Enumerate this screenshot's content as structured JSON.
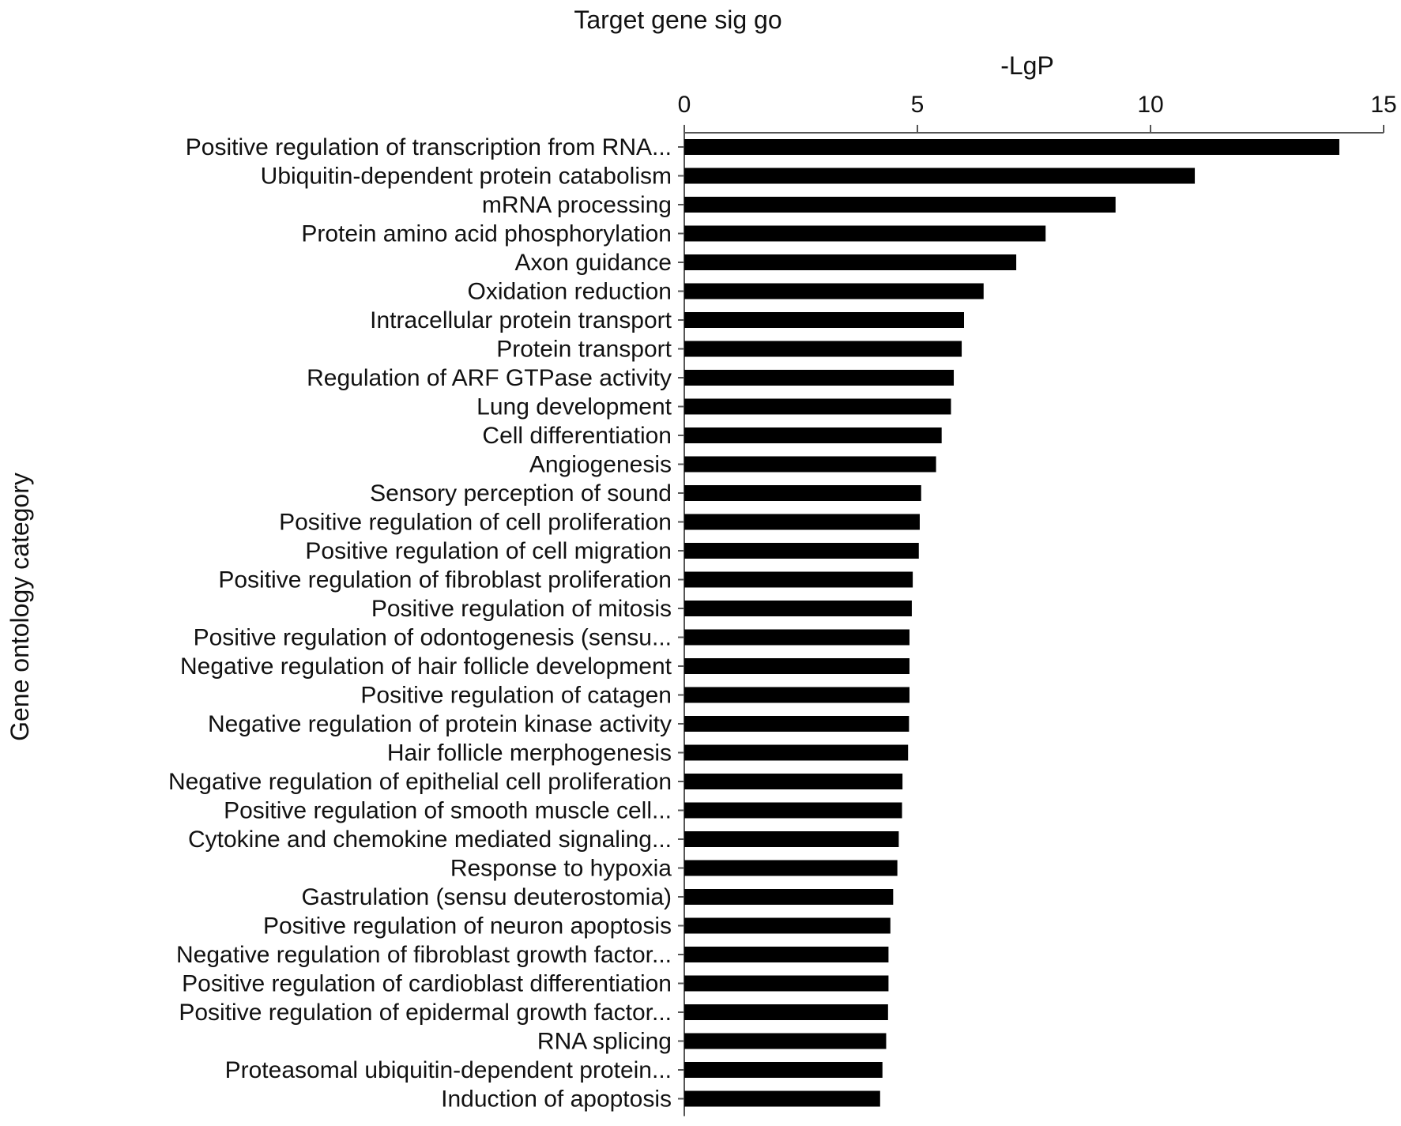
{
  "chart_data": {
    "type": "bar",
    "orientation": "horizontal",
    "title": "Target gene sig go",
    "xlabel": "-LgP",
    "ylabel": "Gene ontology category",
    "xlim": [
      0,
      15
    ],
    "xticks": [
      0,
      5,
      10,
      15
    ],
    "x_axis_position": "top",
    "grid": false,
    "bar_color": "#000000",
    "categories": [
      "Positive regulation of transcription from RNA...",
      "Ubiquitin-dependent protein catabolism",
      "mRNA processing",
      "Protein amino acid phosphorylation",
      "Axon guidance",
      "Oxidation reduction",
      "Intracellular protein transport",
      "Protein transport",
      "Regulation of ARF GTPase activity",
      "Lung development",
      "Cell differentiation",
      "Angiogenesis",
      "Sensory perception of sound",
      "Positive regulation of cell proliferation",
      "Positive regulation of cell migration",
      "Positive regulation of fibroblast proliferation",
      "Positive regulation of mitosis",
      "Positive regulation of odontogenesis (sensu...",
      "Negative regulation of hair follicle development",
      "Positive regulation of catagen",
      "Negative regulation of protein kinase activity",
      "Hair follicle merphogenesis",
      "Negative regulation of epithelial cell proliferation",
      "Positive regulation of smooth muscle cell...",
      "Cytokine and chemokine mediated signaling...",
      "Response to hypoxia",
      "Gastrulation (sensu deuterostomia)",
      "Positive regulation of neuron apoptosis",
      "Negative regulation of fibroblast growth factor...",
      "Positive regulation of cardioblast differentiation",
      "Positive regulation of epidermal growth factor...",
      "RNA splicing",
      "Proteasomal ubiquitin-dependent protein...",
      "Induction of apoptosis"
    ],
    "values": [
      14.05,
      10.95,
      9.25,
      7.75,
      7.12,
      6.42,
      6.0,
      5.95,
      5.78,
      5.72,
      5.52,
      5.4,
      5.08,
      5.05,
      5.03,
      4.9,
      4.88,
      4.83,
      4.83,
      4.83,
      4.82,
      4.8,
      4.68,
      4.67,
      4.6,
      4.57,
      4.48,
      4.42,
      4.38,
      4.38,
      4.37,
      4.33,
      4.25,
      4.2
    ]
  }
}
